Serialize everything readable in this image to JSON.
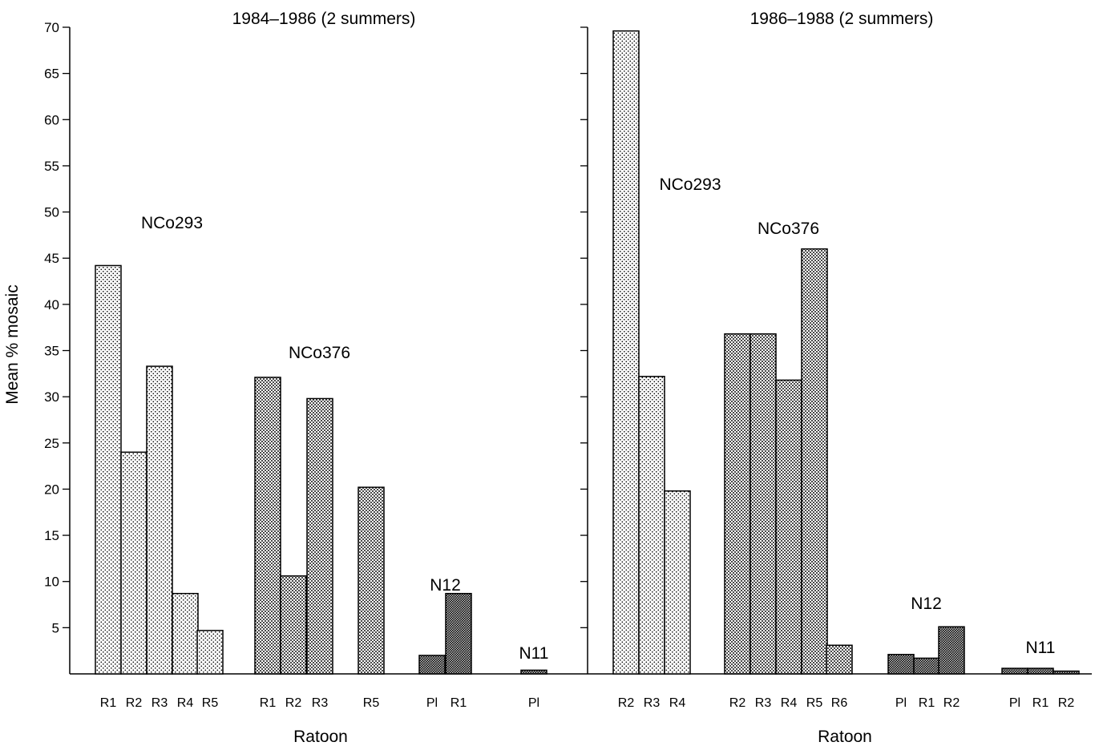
{
  "chart_data": {
    "type": "bar",
    "ylabel": "Mean % mosaic",
    "ylim": [
      0,
      70
    ],
    "yticks": [
      5,
      10,
      15,
      20,
      25,
      30,
      35,
      40,
      45,
      50,
      55,
      60,
      65,
      70
    ],
    "grid": false,
    "panels": [
      {
        "title": "1984–1986  (2 summers)",
        "xlabel": "Ratoon",
        "groups": [
          {
            "name": "NCo293",
            "pattern": "light",
            "bars": [
              {
                "label": "R1",
                "value": 44.2
              },
              {
                "label": "R2",
                "value": 24.0
              },
              {
                "label": "R3",
                "value": 33.3
              },
              {
                "label": "R4",
                "value": 8.7
              },
              {
                "label": "R5",
                "value": 4.7
              }
            ]
          },
          {
            "name": "NCo376",
            "pattern": "medium",
            "bars": [
              {
                "label": "R1",
                "value": 32.1
              },
              {
                "label": "R2",
                "value": 10.6
              },
              {
                "label": "R3",
                "value": 29.8
              },
              {
                "label": "R5",
                "value": 20.2
              }
            ]
          },
          {
            "name": "N12",
            "pattern": "dark",
            "bars": [
              {
                "label": "Pl",
                "value": 2.0
              },
              {
                "label": "R1",
                "value": 8.7
              }
            ]
          },
          {
            "name": "N11",
            "pattern": "dark",
            "bars": [
              {
                "label": "Pl",
                "value": 0.4
              }
            ]
          }
        ]
      },
      {
        "title": "1986–1988  (2 summers)",
        "xlabel": "Ratoon",
        "groups": [
          {
            "name": "NCo293",
            "pattern": "light",
            "bars": [
              {
                "label": "R2",
                "value": 69.6
              },
              {
                "label": "R3",
                "value": 32.2
              },
              {
                "label": "R4",
                "value": 19.8
              }
            ]
          },
          {
            "name": "NCo376",
            "pattern": "medium",
            "bars": [
              {
                "label": "R2",
                "value": 36.8
              },
              {
                "label": "R3",
                "value": 36.8
              },
              {
                "label": "R4",
                "value": 31.8
              },
              {
                "label": "R5",
                "value": 46.0
              },
              {
                "label": "R6",
                "value": 3.1
              }
            ]
          },
          {
            "name": "N12",
            "pattern": "dark",
            "bars": [
              {
                "label": "Pl",
                "value": 2.1
              },
              {
                "label": "R1",
                "value": 1.7
              },
              {
                "label": "R2",
                "value": 5.1
              }
            ]
          },
          {
            "name": "N11",
            "pattern": "dark",
            "bars": [
              {
                "label": "Pl",
                "value": 0.6
              },
              {
                "label": "R1",
                "value": 0.6
              },
              {
                "label": "R2",
                "value": 0.3
              }
            ]
          }
        ]
      }
    ]
  }
}
